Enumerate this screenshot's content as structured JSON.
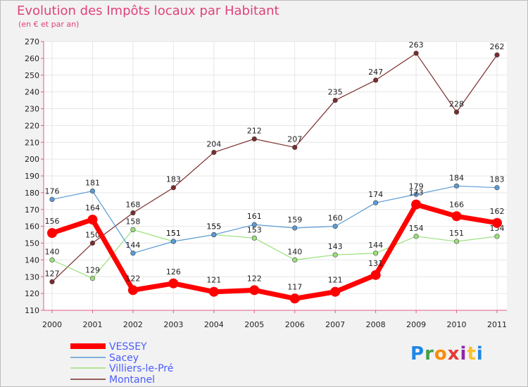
{
  "chart_data": {
    "type": "line",
    "title": "Evolution des Impôts locaux par Habitant",
    "subtitle": "(en € et par an)",
    "categories": [
      "2000",
      "2001",
      "2002",
      "2003",
      "2004",
      "2005",
      "2006",
      "2007",
      "2008",
      "2009",
      "2010",
      "2011"
    ],
    "ylim": [
      110,
      270
    ],
    "yticks": [
      110,
      120,
      130,
      140,
      150,
      160,
      170,
      180,
      190,
      200,
      210,
      220,
      230,
      240,
      250,
      260,
      270
    ],
    "grid": true,
    "series": [
      {
        "name": "VESSEY",
        "color": "#ff0000",
        "values": [
          156,
          164,
          122,
          126,
          121,
          122,
          117,
          121,
          131,
          173,
          166,
          162
        ]
      },
      {
        "name": "Sacey",
        "color": "#5b9bd5",
        "values": [
          176,
          181,
          144,
          151,
          155,
          161,
          159,
          160,
          174,
          179,
          184,
          183
        ]
      },
      {
        "name": "Villiers-le-Pré",
        "color": "#99e07a",
        "values": [
          140,
          129,
          158,
          151,
          155,
          153,
          140,
          143,
          144,
          154,
          151,
          154
        ]
      },
      {
        "name": "Montanel",
        "color": "#7a2c2c",
        "values": [
          127,
          150,
          168,
          183,
          204,
          212,
          207,
          235,
          247,
          263,
          228,
          262
        ]
      }
    ]
  },
  "logo": {
    "text_parts": [
      "Pro",
      "x",
      "iti"
    ],
    "colors": [
      "#1e88e5",
      "#43a047",
      "#fb8c00",
      "#e53935",
      "#8e24aa",
      "#fbc02d"
    ]
  }
}
